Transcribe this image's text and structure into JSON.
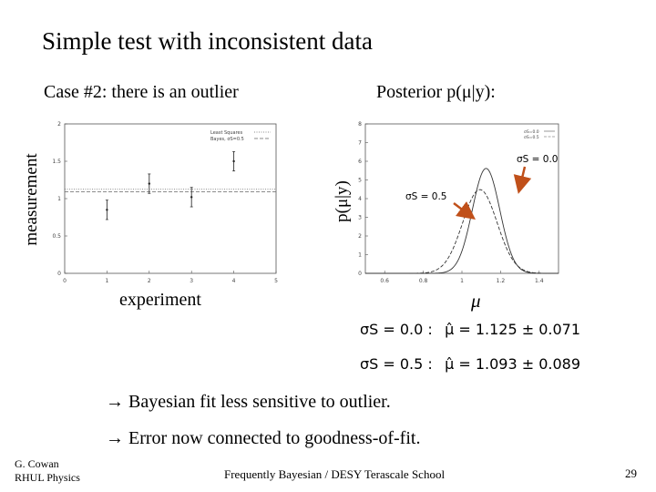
{
  "slide": {
    "title": "Simple test with inconsistent data",
    "case_label": "Case #2: there is an outlier",
    "posterior_label": "Posterior p(μ|y):",
    "bullets": [
      "→ Bayesian fit less sensitive to outlier.",
      "→ Error now connected to goodness-of-fit."
    ],
    "author_line1": "G. Cowan",
    "author_line2": "RHUL Physics",
    "footer": "Frequently Bayesian / DESY Terascale School",
    "page_number": "29"
  },
  "results": [
    {
      "sigma": "σS = 0.0 :",
      "estimate": "μ̂ = 1.125 ± 0.071"
    },
    {
      "sigma": "σS = 0.5 :",
      "estimate": "μ̂ = 1.093 ± 0.089"
    }
  ],
  "chart_data": [
    {
      "type": "scatter",
      "ylabel": "measurement",
      "xlabel": "experiment",
      "xlim": [
        0,
        5
      ],
      "ylim": [
        0,
        2
      ],
      "x_ticks": [
        "0",
        "1",
        "2",
        "3",
        "4",
        "5"
      ],
      "y_ticks": [
        "0",
        "0.5",
        "1",
        "1.5",
        "2"
      ],
      "legend": [
        "Least Squares",
        "Bayes, σS=0.5"
      ],
      "legend_position": "top-right",
      "points": [
        {
          "x": 1,
          "y": 0.85,
          "err": 0.13
        },
        {
          "x": 2,
          "y": 1.2,
          "err": 0.13
        },
        {
          "x": 3,
          "y": 1.02,
          "err": 0.13
        },
        {
          "x": 4,
          "y": 1.5,
          "err": 0.13
        }
      ],
      "fit_lines": [
        {
          "name": "Least Squares",
          "y": 1.125,
          "style": "dotted"
        },
        {
          "name": "Bayes, σS=0.5",
          "y": 1.093,
          "style": "dashed"
        }
      ]
    },
    {
      "type": "line",
      "ylabel": "p(μ|y)",
      "xlabel": "μ",
      "xlim": [
        0.5,
        1.5
      ],
      "ylim": [
        0,
        8
      ],
      "x_ticks": [
        "0.6",
        "0.8",
        "1",
        "1.2",
        "1.4"
      ],
      "y_ticks": [
        "0",
        "1",
        "2",
        "3",
        "4",
        "5",
        "6",
        "7",
        "8"
      ],
      "legend": [
        "σS=0.0",
        "σS=0.5"
      ],
      "legend_position": "top-right",
      "annotations": [
        "σS = 0.0",
        "σS = 0.5"
      ],
      "series": [
        {
          "name": "σS=0.0",
          "mean": 1.125,
          "sigma": 0.071,
          "style": "solid"
        },
        {
          "name": "σS=0.5",
          "mean": 1.093,
          "sigma": 0.089,
          "style": "dashed"
        }
      ]
    }
  ]
}
